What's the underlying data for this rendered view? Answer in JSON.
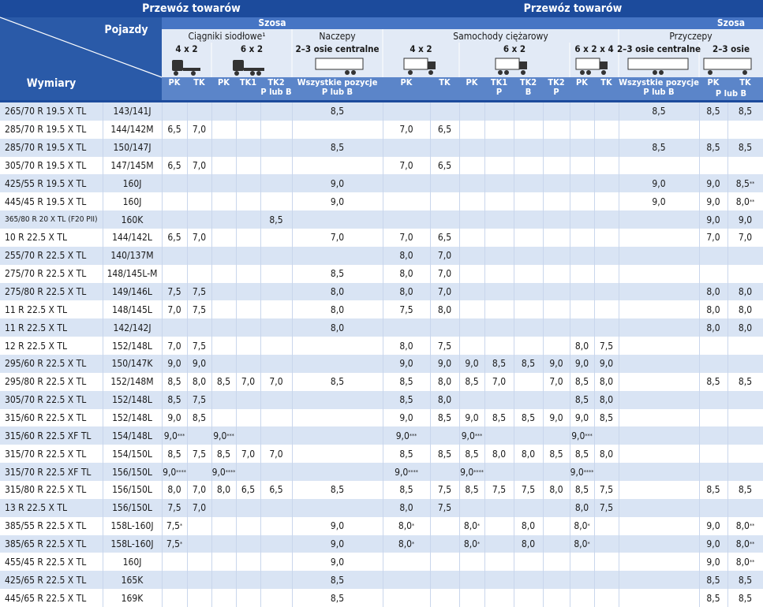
{
  "header": {
    "titles": [
      "Przewóz towarów",
      "Przewóz towarów"
    ],
    "szosa": [
      "Szosa",
      "Szosa"
    ],
    "pojazdy": "Pojazdy",
    "wymiary": "Wymiary",
    "groups": [
      "Ciągniki siodłowe¹",
      "Naczepy",
      "Samochody ciężarowy",
      "Przyczepy"
    ],
    "configs": [
      "4 x 2",
      "6 x 2",
      "2–3 osie centralne",
      "4 x 2",
      "6 x 2",
      "6 x 2 x 4",
      "2–3 osie centralne",
      "2–3 osie"
    ],
    "columns": [
      [
        "PK"
      ],
      [
        "TK"
      ],
      [
        "PK"
      ],
      [
        "TK1"
      ],
      [
        "TK2",
        "P lub B"
      ],
      [
        "Wszystkie pozycje",
        "P lub B"
      ],
      [
        "PK"
      ],
      [
        "TK"
      ],
      [
        "PK"
      ],
      [
        "TK1",
        "P"
      ],
      [
        "TK2",
        "B"
      ],
      [
        "TK2",
        "P"
      ],
      [
        "PK"
      ],
      [
        "TK"
      ],
      [
        "Wszystkie pozycje",
        "P lub B"
      ],
      [
        "PK"
      ],
      [
        "TK"
      ]
    ],
    "columns_note": "P lub B"
  },
  "table": {
    "rows": [
      [
        "265/70 R 19.5 X TL",
        "143/141J",
        null,
        null,
        null,
        null,
        null,
        "8,5",
        null,
        null,
        null,
        null,
        null,
        null,
        null,
        null,
        "8,5",
        "8,5",
        "8,5"
      ],
      [
        "285/70 R 19.5 X TL",
        "144/142M",
        "6,5",
        "7,0",
        null,
        null,
        null,
        null,
        "7,0",
        "6,5",
        null,
        null,
        null,
        null,
        null,
        null,
        null,
        null,
        null
      ],
      [
        "285/70 R 19.5 X TL",
        "150/147J",
        null,
        null,
        null,
        null,
        null,
        "8,5",
        null,
        null,
        null,
        null,
        null,
        null,
        null,
        null,
        "8,5",
        "8,5",
        "8,5"
      ],
      [
        "305/70 R 19.5 X TL",
        "147/145M",
        "6,5",
        "7,0",
        null,
        null,
        null,
        null,
        "7,0",
        "6,5",
        null,
        null,
        null,
        null,
        null,
        null,
        null,
        null,
        null
      ],
      [
        "425/55 R 19.5 X TL",
        "160J",
        null,
        null,
        null,
        null,
        null,
        "9,0",
        null,
        null,
        null,
        null,
        null,
        null,
        null,
        null,
        "9,0",
        "9,0",
        "8,5**"
      ],
      [
        "445/45 R 19.5 X TL",
        "160J",
        null,
        null,
        null,
        null,
        null,
        "9,0",
        null,
        null,
        null,
        null,
        null,
        null,
        null,
        null,
        "9,0",
        "9,0",
        "8,0**"
      ],
      [
        "365/80 R 20 X TL (F20 PII)",
        "160K",
        null,
        null,
        null,
        null,
        "8,5",
        null,
        null,
        null,
        null,
        null,
        null,
        null,
        null,
        null,
        null,
        "9,0",
        "9,0"
      ],
      [
        "10 R 22.5 X TL",
        "144/142L",
        "6,5",
        "7,0",
        null,
        null,
        null,
        "7,0",
        "7,0",
        "6,5",
        null,
        null,
        null,
        null,
        null,
        null,
        null,
        "7,0",
        "7,0"
      ],
      [
        "255/70 R 22.5 X TL",
        "140/137M",
        null,
        null,
        null,
        null,
        null,
        null,
        "8,0",
        "7,0",
        null,
        null,
        null,
        null,
        null,
        null,
        null,
        null,
        null
      ],
      [
        "275/70 R 22.5 X TL",
        "148/145L-M",
        null,
        null,
        null,
        null,
        null,
        "8,5",
        "8,0",
        "7,0",
        null,
        null,
        null,
        null,
        null,
        null,
        null,
        null,
        null
      ],
      [
        "275/80 R 22.5 X TL",
        "149/146L",
        "7,5",
        "7,5",
        null,
        null,
        null,
        "8,0",
        "8,0",
        "7,0",
        null,
        null,
        null,
        null,
        null,
        null,
        null,
        "8,0",
        "8,0"
      ],
      [
        "11 R 22.5 X TL",
        "148/145L",
        "7,0",
        "7,5",
        null,
        null,
        null,
        "8,0",
        "7,5",
        "8,0",
        null,
        null,
        null,
        null,
        null,
        null,
        null,
        "8,0",
        "8,0"
      ],
      [
        "11 R 22.5 X TL",
        "142/142J",
        null,
        null,
        null,
        null,
        null,
        "8,0",
        null,
        null,
        null,
        null,
        null,
        null,
        null,
        null,
        null,
        "8,0",
        "8,0"
      ],
      [
        "12 R 22.5 X TL",
        "152/148L",
        "7,0",
        "7,5",
        null,
        null,
        null,
        null,
        "8,0",
        "7,5",
        null,
        null,
        null,
        null,
        "8,0",
        "7,5",
        null,
        null,
        null
      ],
      [
        "295/60 R 22.5 X TL",
        "150/147K",
        "9,0",
        "9,0",
        null,
        null,
        null,
        null,
        "9,0",
        "9,0",
        "9,0",
        "8,5",
        "8,5",
        "9,0",
        "9,0",
        "9,0",
        null,
        null,
        null
      ],
      [
        "295/80 R 22.5 X TL",
        "152/148M",
        "8,5",
        "8,0",
        "8,5",
        "7,0",
        "7,0",
        "8,5",
        "8,5",
        "8,0",
        "8,5",
        "7,0",
        null,
        "7,0",
        "8,5",
        "8,0",
        null,
        "8,5",
        "8,5"
      ],
      [
        "305/70 R 22.5 X TL",
        "152/148L",
        "8,5",
        "7,5",
        null,
        null,
        null,
        null,
        "8,5",
        "8,0",
        null,
        null,
        null,
        null,
        "8,5",
        "8,0",
        null,
        null,
        null
      ],
      [
        "315/60 R 22.5 X TL",
        "152/148L",
        "9,0",
        "8,5",
        null,
        null,
        null,
        null,
        "9,0",
        "8,5",
        "9,0",
        "8,5",
        "8,5",
        "9,0",
        "9,0",
        "8,5",
        null,
        null,
        null
      ],
      [
        "315/60 R 22.5 XF TL",
        "154/148L",
        "9,0***",
        null,
        "9,0***",
        null,
        null,
        null,
        "9,0***",
        null,
        "9,0***",
        null,
        null,
        null,
        "9,0***",
        null,
        null,
        null,
        null
      ],
      [
        "315/70 R 22.5 X TL",
        "154/150L",
        "8,5",
        "7,5",
        "8,5",
        "7,0",
        "7,0",
        null,
        "8,5",
        "8,5",
        "8,5",
        "8,0",
        "8,0",
        "8,5",
        "8,5",
        "8,0",
        null,
        null,
        null
      ],
      [
        "315/70 R 22.5 XF TL",
        "156/150L",
        "9,0****",
        null,
        "9,0****",
        null,
        null,
        null,
        "9,0****",
        null,
        "9,0****",
        null,
        null,
        null,
        "9,0****",
        null,
        null,
        null,
        null
      ],
      [
        "315/80 R 22.5 X TL",
        "156/150L",
        "8,0",
        "7,0",
        "8,0",
        "6,5",
        "6,5",
        "8,5",
        "8,5",
        "7,5",
        "8,5",
        "7,5",
        "7,5",
        "8,0",
        "8,5",
        "7,5",
        null,
        "8,5",
        "8,5"
      ],
      [
        "13 R 22.5 X TL",
        "156/150L",
        "7,5",
        "7,0",
        null,
        null,
        null,
        null,
        "8,0",
        "7,5",
        null,
        null,
        null,
        null,
        "8,0",
        "7,5",
        null,
        null,
        null
      ],
      [
        "385/55 R 22.5 X TL",
        "158L-160J",
        "7,5*",
        null,
        null,
        null,
        null,
        "9,0",
        "8,0*",
        null,
        "8,0*",
        null,
        "8,0",
        null,
        "8,0*",
        null,
        null,
        "9,0",
        "8,0**"
      ],
      [
        "385/65 R 22.5 X TL",
        "158L-160J",
        "7,5*",
        null,
        null,
        null,
        null,
        "9,0",
        "8,0*",
        null,
        "8,0*",
        null,
        "8,0",
        null,
        "8,0*",
        null,
        null,
        "9,0",
        "8,0**"
      ],
      [
        "455/45 R 22.5 X TL",
        "160J",
        null,
        null,
        null,
        null,
        null,
        "9,0",
        null,
        null,
        null,
        null,
        null,
        null,
        null,
        null,
        null,
        "9,0",
        "8,0**"
      ],
      [
        "425/65 R 22.5 X TL",
        "165K",
        null,
        null,
        null,
        null,
        null,
        "8,5",
        null,
        null,
        null,
        null,
        null,
        null,
        null,
        null,
        null,
        "8,5",
        "8,5"
      ],
      [
        "445/65 R 22.5 X TL",
        "169K",
        null,
        null,
        null,
        null,
        null,
        "8,5",
        null,
        null,
        null,
        null,
        null,
        null,
        null,
        null,
        null,
        "8,5",
        "8,5"
      ]
    ]
  }
}
